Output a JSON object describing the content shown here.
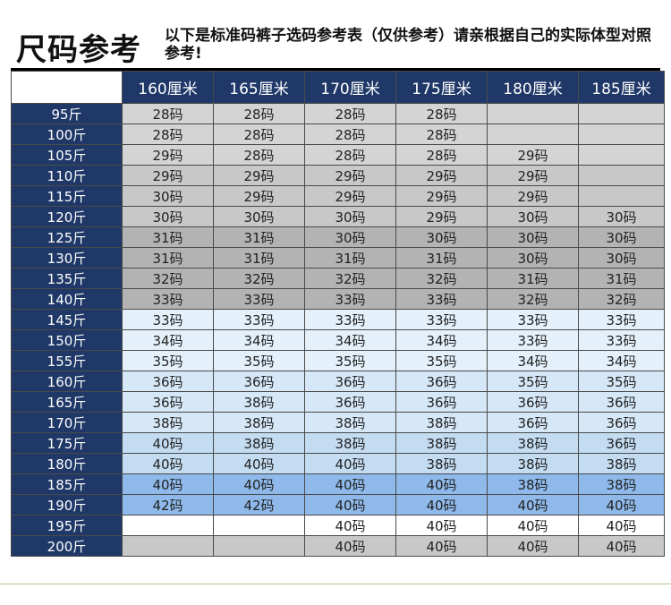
{
  "title": "尺码参考",
  "note": "以下是标准码裤子选码参考表（仅供参考）请亲根据自己的实际体型对照参考!",
  "heights": [
    "160厘米",
    "165厘米",
    "170厘米",
    "175厘米",
    "180厘米",
    "185厘米"
  ],
  "rows": [
    {
      "weight": "95斤",
      "bg": "#d4d4d4",
      "sizes": [
        "28码",
        "28码",
        "28码",
        "28码",
        "",
        ""
      ]
    },
    {
      "weight": "100斤",
      "bg": "#d4d4d4",
      "sizes": [
        "28码",
        "28码",
        "28码",
        "28码",
        "",
        ""
      ]
    },
    {
      "weight": "105斤",
      "bg": "#d4d4d4",
      "sizes": [
        "29码",
        "28码",
        "28码",
        "28码",
        "29码",
        ""
      ]
    },
    {
      "weight": "110斤",
      "bg": "#c8c8c8",
      "sizes": [
        "29码",
        "29码",
        "29码",
        "29码",
        "29码",
        ""
      ]
    },
    {
      "weight": "115斤",
      "bg": "#c8c8c8",
      "sizes": [
        "30码",
        "29码",
        "29码",
        "29码",
        "29码",
        ""
      ]
    },
    {
      "weight": "120斤",
      "bg": "#c8c8c8",
      "sizes": [
        "30码",
        "30码",
        "30码",
        "29码",
        "30码",
        "30码"
      ]
    },
    {
      "weight": "125斤",
      "bg": "#b3b3b3",
      "sizes": [
        "31码",
        "31码",
        "30码",
        "30码",
        "30码",
        "30码"
      ]
    },
    {
      "weight": "130斤",
      "bg": "#b3b3b3",
      "sizes": [
        "31码",
        "31码",
        "31码",
        "31码",
        "30码",
        "30码"
      ]
    },
    {
      "weight": "135斤",
      "bg": "#b3b3b3",
      "sizes": [
        "32码",
        "32码",
        "32码",
        "32码",
        "31码",
        "31码"
      ]
    },
    {
      "weight": "140斤",
      "bg": "#b3b3b3",
      "sizes": [
        "33码",
        "33码",
        "33码",
        "33码",
        "32码",
        "32码"
      ]
    },
    {
      "weight": "145斤",
      "bg": "#e4f1fb",
      "sizes": [
        "33码",
        "33码",
        "33码",
        "33码",
        "33码",
        "33码"
      ]
    },
    {
      "weight": "150斤",
      "bg": "#e4f1fb",
      "sizes": [
        "34码",
        "34码",
        "34码",
        "34码",
        "33码",
        "33码"
      ]
    },
    {
      "weight": "155斤",
      "bg": "#e4f1fb",
      "sizes": [
        "35码",
        "35码",
        "35码",
        "35码",
        "34码",
        "34码"
      ]
    },
    {
      "weight": "160斤",
      "bg": "#d6e8f7",
      "sizes": [
        "36码",
        "36码",
        "36码",
        "36码",
        "35码",
        "35码"
      ]
    },
    {
      "weight": "165斤",
      "bg": "#d6e8f7",
      "sizes": [
        "36码",
        "38码",
        "36码",
        "36码",
        "36码",
        "36码"
      ]
    },
    {
      "weight": "170斤",
      "bg": "#d6e8f7",
      "sizes": [
        "38码",
        "38码",
        "38码",
        "38码",
        "36码",
        "36码"
      ]
    },
    {
      "weight": "175斤",
      "bg": "#c4dcf2",
      "sizes": [
        "40码",
        "38码",
        "38码",
        "38码",
        "38码",
        "36码"
      ]
    },
    {
      "weight": "180斤",
      "bg": "#c4dcf2",
      "sizes": [
        "40码",
        "40码",
        "40码",
        "38码",
        "38码",
        "38码"
      ]
    },
    {
      "weight": "185斤",
      "bg": "#8eb9ea",
      "sizes": [
        "40码",
        "40码",
        "40码",
        "40码",
        "38码",
        "38码"
      ]
    },
    {
      "weight": "190斤",
      "bg": "#8eb9ea",
      "sizes": [
        "42码",
        "42码",
        "40码",
        "40码",
        "40码",
        "40码"
      ]
    },
    {
      "weight": "195斤",
      "bg": "#ffffff",
      "sizes": [
        "",
        "",
        "40码",
        "40码",
        "40码",
        "40码"
      ]
    },
    {
      "weight": "200斤",
      "bg": "#c8c8c8",
      "sizes": [
        "",
        "",
        "40码",
        "40码",
        "40码",
        "40码"
      ]
    }
  ]
}
